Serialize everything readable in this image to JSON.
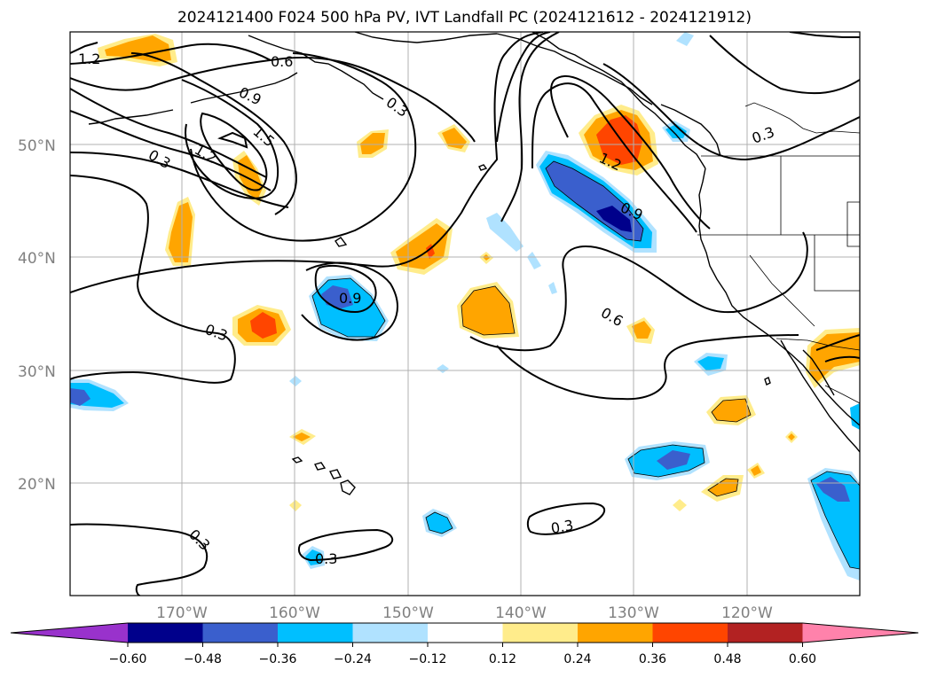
{
  "title": "2024121400 F024 500 hPa PV, IVT Landfall PC (2024121612 - 2024121912)",
  "lat_ticks": [
    "50°N",
    "40°N",
    "30°N",
    "20°N"
  ],
  "lon_ticks": [
    "170°W",
    "160°W",
    "150°W",
    "140°W",
    "130°W",
    "120°W"
  ],
  "contour_labels": [
    "1.2",
    "0.6",
    "0.9",
    "1.5",
    "1.2",
    "0.3",
    "0.3",
    "0.9",
    "0.3",
    "1.2",
    "0.9",
    "0.6",
    "0.3",
    "0.3",
    "0.3",
    "0.3"
  ],
  "colorbar": {
    "ticks": [
      "−0.60",
      "−0.48",
      "−0.36",
      "−0.24",
      "−0.12",
      "0.12",
      "0.24",
      "0.36",
      "0.48",
      "0.60"
    ],
    "colors": [
      "#9932cc",
      "#00008b",
      "#3a5fcd",
      "#00bfff",
      "#b0e2ff",
      "#ffffff",
      "#ffec8b",
      "#ffa500",
      "#ff4500",
      "#b22222",
      "#ff82ab"
    ]
  }
}
